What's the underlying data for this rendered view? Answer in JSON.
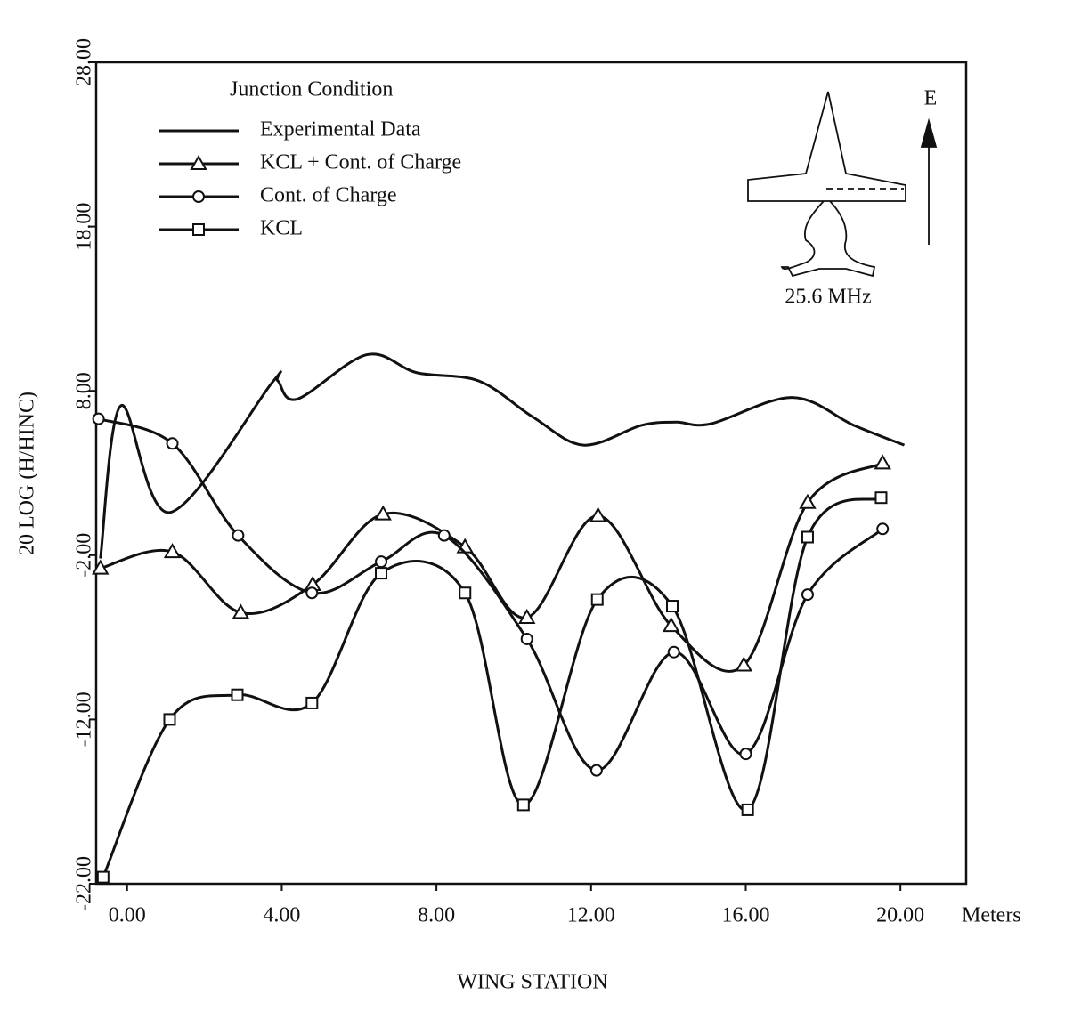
{
  "chart_data": {
    "type": "line",
    "legend_title": "Junction Condition",
    "xlabel": "WING STATION",
    "x_unit": "Meters",
    "ylabel": "20 LOG (H/HINC)",
    "inset_label": "25.6 MHz",
    "inset_field": "E",
    "xlim": [
      -0.8,
      21.7
    ],
    "ylim": [
      -22,
      28
    ],
    "xticks": [
      {
        "value": 0,
        "label": "0.00"
      },
      {
        "value": 4,
        "label": "4.00"
      },
      {
        "value": 8,
        "label": "8.00"
      },
      {
        "value": 12,
        "label": "12.00"
      },
      {
        "value": 16,
        "label": "16.00"
      },
      {
        "value": 20,
        "label": "20.00"
      }
    ],
    "yticks": [
      {
        "value": -22,
        "label": "-22.00"
      },
      {
        "value": -12,
        "label": "-12.00"
      },
      {
        "value": -2,
        "label": "-2.00"
      },
      {
        "value": 8,
        "label": "8.00"
      },
      {
        "value": 18,
        "label": "18.00"
      },
      {
        "value": 28,
        "label": "28.00"
      }
    ],
    "series": [
      {
        "name": "Experimental Data",
        "color": "#111111",
        "marker": "none",
        "x": [
          -0.69,
          -0.16,
          1.1,
          3.75,
          3.9,
          4.4,
          6.2,
          7.5,
          9.1,
          10.5,
          11.8,
          13.3,
          14.2,
          15.1,
          17.2,
          18.8,
          20.1
        ],
        "values": [
          -2.2,
          7.1,
          0.6,
          8.5,
          8.6,
          7.5,
          10.2,
          9.1,
          8.6,
          6.4,
          4.7,
          5.9,
          6.1,
          6.0,
          7.6,
          5.9,
          4.7
        ]
      },
      {
        "name": "KCL + Cont. of Charge",
        "color": "#111111",
        "marker": "triangle",
        "x": [
          -0.69,
          1.17,
          2.94,
          4.8,
          6.62,
          8.74,
          10.34,
          12.18,
          14.07,
          15.95,
          17.6,
          19.54
        ],
        "values": [
          -2.8,
          -1.8,
          -5.5,
          -3.8,
          0.5,
          -1.5,
          -5.8,
          0.4,
          -6.3,
          -8.7,
          1.2,
          3.6
        ]
      },
      {
        "name": "Cont. of Charge",
        "color": "#111111",
        "marker": "circle",
        "x": [
          -0.74,
          1.17,
          2.87,
          4.78,
          6.57,
          8.2,
          10.34,
          12.14,
          14.14,
          16.0,
          17.6,
          19.54
        ],
        "values": [
          6.3,
          4.8,
          -0.8,
          -4.3,
          -2.4,
          -0.8,
          -7.1,
          -15.1,
          -7.9,
          -14.1,
          -4.4,
          -0.4
        ]
      },
      {
        "name": "KCL",
        "color": "#111111",
        "marker": "square",
        "x": [
          -0.62,
          1.1,
          2.85,
          4.78,
          6.57,
          8.74,
          10.25,
          12.16,
          14.1,
          16.05,
          17.6,
          19.5
        ],
        "values": [
          -21.6,
          -12.0,
          -10.5,
          -11.0,
          -3.1,
          -4.3,
          -17.2,
          -4.7,
          -5.1,
          -17.5,
          -0.9,
          1.5
        ]
      }
    ]
  }
}
